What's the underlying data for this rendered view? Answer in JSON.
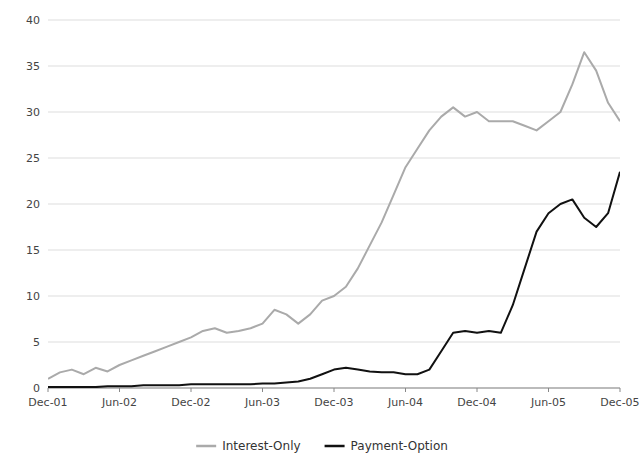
{
  "chart_data": {
    "type": "line",
    "categories": [
      "Dec-01",
      null,
      null,
      null,
      null,
      null,
      "Jun-02",
      null,
      null,
      null,
      null,
      null,
      "Dec-02",
      null,
      null,
      null,
      null,
      null,
      "Jun-03",
      null,
      null,
      null,
      null,
      null,
      "Dec-03",
      null,
      null,
      null,
      null,
      null,
      "Jun-04",
      null,
      null,
      null,
      null,
      null,
      "Dec-04",
      null,
      null,
      null,
      null,
      null,
      "Jun-05",
      null,
      null,
      null,
      null,
      null,
      "Dec-05"
    ],
    "series": [
      {
        "name": "Interest-Only",
        "color": "#aaaaaa",
        "values": [
          1.0,
          1.7,
          2.0,
          1.5,
          2.2,
          1.8,
          2.5,
          3.0,
          3.5,
          4.0,
          4.5,
          5.0,
          5.5,
          6.2,
          6.5,
          6.0,
          6.2,
          6.5,
          7.0,
          8.5,
          8.0,
          7.0,
          8.0,
          9.5,
          10.0,
          11.0,
          13.0,
          15.5,
          18.0,
          21.0,
          24.0,
          26.0,
          28.0,
          29.5,
          30.5,
          29.5,
          30.0,
          29.0,
          29.0,
          29.0,
          28.5,
          28.0,
          29.0,
          30.0,
          33.0,
          36.5,
          34.5,
          31.0,
          29.0
        ]
      },
      {
        "name": "Payment-Option",
        "color": "#111111",
        "values": [
          0.1,
          0.1,
          0.1,
          0.1,
          0.1,
          0.2,
          0.2,
          0.2,
          0.3,
          0.3,
          0.3,
          0.3,
          0.4,
          0.4,
          0.4,
          0.4,
          0.4,
          0.4,
          0.5,
          0.5,
          0.6,
          0.7,
          1.0,
          1.5,
          2.0,
          2.2,
          2.0,
          1.8,
          1.7,
          1.7,
          1.5,
          1.5,
          2.0,
          4.0,
          6.0,
          6.2,
          6.0,
          6.2,
          6.0,
          9.0,
          13.0,
          17.0,
          19.0,
          20.0,
          20.5,
          18.5,
          17.5,
          19.0,
          23.5
        ]
      }
    ],
    "ylim": [
      0,
      40
    ],
    "yticks": [
      0,
      5,
      10,
      15,
      20,
      25,
      30,
      35,
      40
    ],
    "grid": true,
    "legend": "bottom"
  }
}
